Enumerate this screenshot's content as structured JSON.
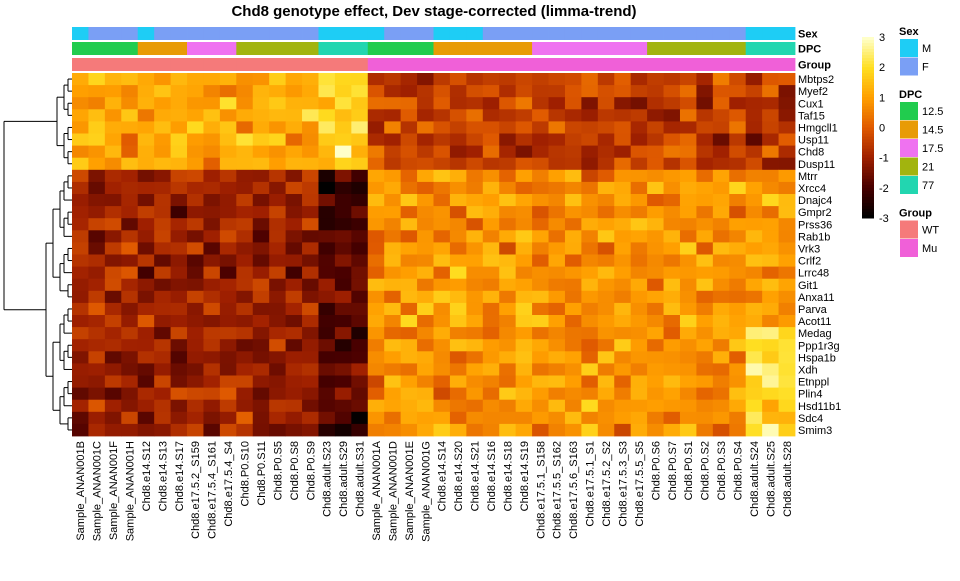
{
  "chart_data": {
    "type": "heatmap",
    "title": "Chd8 genotype effect, Dev stage-corrected (limma-trend)",
    "row_annotation_labels": [
      "Sex",
      "DPC",
      "Group"
    ],
    "samples": [
      {
        "name": "Sample_ANAN001B",
        "sex": "M",
        "dpc": "12.5",
        "group": "WT"
      },
      {
        "name": "Sample_ANAN001C",
        "sex": "F",
        "dpc": "12.5",
        "group": "WT"
      },
      {
        "name": "Sample_ANAN001F",
        "sex": "F",
        "dpc": "12.5",
        "group": "WT"
      },
      {
        "name": "Sample_ANAN001H",
        "sex": "F",
        "dpc": "12.5",
        "group": "WT"
      },
      {
        "name": "Chd8.e14.S12",
        "sex": "M",
        "dpc": "14.5",
        "group": "WT"
      },
      {
        "name": "Chd8.e14.S13",
        "sex": "F",
        "dpc": "14.5",
        "group": "WT"
      },
      {
        "name": "Chd8.e14.S17",
        "sex": "F",
        "dpc": "14.5",
        "group": "WT"
      },
      {
        "name": "Chd8.e17.5.2_S159",
        "sex": "F",
        "dpc": "17.5",
        "group": "WT"
      },
      {
        "name": "Chd8.e17.5.4_S161",
        "sex": "F",
        "dpc": "17.5",
        "group": "WT"
      },
      {
        "name": "Chd8.e17.5.4_S4",
        "sex": "F",
        "dpc": "17.5",
        "group": "WT"
      },
      {
        "name": "Chd8.P0.S10",
        "sex": "F",
        "dpc": "21",
        "group": "WT"
      },
      {
        "name": "Chd8.P0.S11",
        "sex": "F",
        "dpc": "21",
        "group": "WT"
      },
      {
        "name": "Chd8.P0.S5",
        "sex": "F",
        "dpc": "21",
        "group": "WT"
      },
      {
        "name": "Chd8.P0.S8",
        "sex": "F",
        "dpc": "21",
        "group": "WT"
      },
      {
        "name": "Chd8.P0.S9",
        "sex": "F",
        "dpc": "21",
        "group": "WT"
      },
      {
        "name": "Chd8.adult.S23",
        "sex": "M",
        "dpc": "77",
        "group": "WT"
      },
      {
        "name": "Chd8.adult.S29",
        "sex": "M",
        "dpc": "77",
        "group": "WT"
      },
      {
        "name": "Chd8.adult.S31",
        "sex": "M",
        "dpc": "77",
        "group": "WT"
      },
      {
        "name": "Sample_ANAN001A",
        "sex": "M",
        "dpc": "12.5",
        "group": "Mu"
      },
      {
        "name": "Sample_ANAN001D",
        "sex": "F",
        "dpc": "12.5",
        "group": "Mu"
      },
      {
        "name": "Sample_ANAN001E",
        "sex": "F",
        "dpc": "12.5",
        "group": "Mu"
      },
      {
        "name": "Sample_ANAN001G",
        "sex": "F",
        "dpc": "12.5",
        "group": "Mu"
      },
      {
        "name": "Chd8.e14.S14",
        "sex": "M",
        "dpc": "14.5",
        "group": "Mu"
      },
      {
        "name": "Chd8.e14.S20",
        "sex": "M",
        "dpc": "14.5",
        "group": "Mu"
      },
      {
        "name": "Chd8.e14.S21",
        "sex": "M",
        "dpc": "14.5",
        "group": "Mu"
      },
      {
        "name": "Chd8.e14.S16",
        "sex": "F",
        "dpc": "14.5",
        "group": "Mu"
      },
      {
        "name": "Chd8.e14.S18",
        "sex": "F",
        "dpc": "14.5",
        "group": "Mu"
      },
      {
        "name": "Chd8.e14.S19",
        "sex": "F",
        "dpc": "14.5",
        "group": "Mu"
      },
      {
        "name": "Chd8.e17.5.1_S158",
        "sex": "F",
        "dpc": "17.5",
        "group": "Mu"
      },
      {
        "name": "Chd8.e17.5.5_S162",
        "sex": "F",
        "dpc": "17.5",
        "group": "Mu"
      },
      {
        "name": "Chd8.e17.5.6_S163",
        "sex": "F",
        "dpc": "17.5",
        "group": "Mu"
      },
      {
        "name": "Chd8.e17.5.1_S1",
        "sex": "F",
        "dpc": "17.5",
        "group": "Mu"
      },
      {
        "name": "Chd8.e17.5.2_S2",
        "sex": "F",
        "dpc": "17.5",
        "group": "Mu"
      },
      {
        "name": "Chd8.e17.5.3_S3",
        "sex": "F",
        "dpc": "17.5",
        "group": "Mu"
      },
      {
        "name": "Chd8.e17.5.5_S5",
        "sex": "F",
        "dpc": "17.5",
        "group": "Mu"
      },
      {
        "name": "Chd8.P0.S6",
        "sex": "F",
        "dpc": "21",
        "group": "Mu"
      },
      {
        "name": "Chd8.P0.S7",
        "sex": "F",
        "dpc": "21",
        "group": "Mu"
      },
      {
        "name": "Chd8.P0.S1",
        "sex": "F",
        "dpc": "21",
        "group": "Mu"
      },
      {
        "name": "Chd8.P0.S2",
        "sex": "F",
        "dpc": "21",
        "group": "Mu"
      },
      {
        "name": "Chd8.P0.S3",
        "sex": "F",
        "dpc": "21",
        "group": "Mu"
      },
      {
        "name": "Chd8.P0.S4",
        "sex": "F",
        "dpc": "21",
        "group": "Mu"
      },
      {
        "name": "Chd8.adult.S24",
        "sex": "M",
        "dpc": "77",
        "group": "Mu"
      },
      {
        "name": "Chd8.adult.S25",
        "sex": "M",
        "dpc": "77",
        "group": "Mu"
      },
      {
        "name": "Chd8.adult.S28",
        "sex": "M",
        "dpc": "77",
        "group": "Mu"
      }
    ],
    "genes": [
      "Mbtps2",
      "Myef2",
      "Cux1",
      "Taf15",
      "Hmgcll1",
      "Usp11",
      "Chd8",
      "Dusp11",
      "Mtrr",
      "Xrcc4",
      "Dnajc4",
      "Gmpr2",
      "Prss36",
      "Rab1b",
      "Vrk3",
      "Crlf2",
      "Lrrc48",
      "Git1",
      "Anxa11",
      "Parva",
      "Acot11",
      "Medag",
      "Ppp1r3g",
      "Hspa1b",
      "Xdh",
      "Etnppl",
      "Plin4",
      "Hsd11b1",
      "Sdc4",
      "Smim3"
    ],
    "row_cluster_count": 2,
    "color_scale": {
      "min": -3,
      "max": 3,
      "ticks": [
        3,
        2,
        1,
        0,
        -1,
        -2,
        -3
      ],
      "stops": [
        {
          "value": -3,
          "color": "#000000"
        },
        {
          "value": -2,
          "color": "#4a0000"
        },
        {
          "value": -1,
          "color": "#a02000"
        },
        {
          "value": 0,
          "color": "#e05a00"
        },
        {
          "value": 1,
          "color": "#ff9f00"
        },
        {
          "value": 2,
          "color": "#ffde20"
        },
        {
          "value": 3,
          "color": "#ffffc8"
        }
      ]
    },
    "legends": [
      {
        "title": "Sex",
        "entries": [
          {
            "label": "M",
            "color": "#1ecdf5"
          },
          {
            "label": "F",
            "color": "#7a9ff5"
          }
        ]
      },
      {
        "title": "DPC",
        "entries": [
          {
            "label": "12.5",
            "color": "#21cc4e"
          },
          {
            "label": "14.5",
            "color": "#e89b05"
          },
          {
            "label": "17.5",
            "color": "#ef72f0"
          },
          {
            "label": "21",
            "color": "#a2b40e"
          },
          {
            "label": "77",
            "color": "#22d6b0"
          }
        ]
      },
      {
        "title": "Group",
        "entries": [
          {
            "label": "WT",
            "color": "#f57a7a"
          },
          {
            "label": "Mu",
            "color": "#f060d8"
          }
        ]
      }
    ]
  }
}
